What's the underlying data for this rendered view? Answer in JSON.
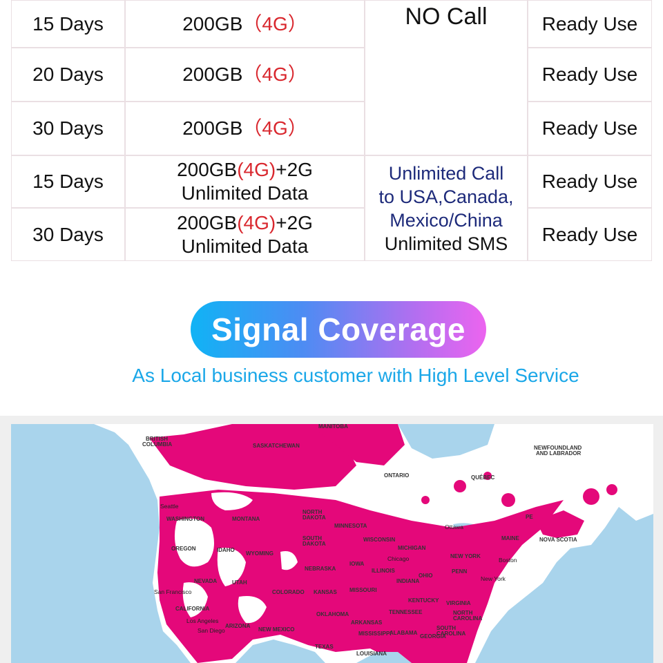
{
  "plans": {
    "rows": [
      {
        "duration": "15 Days",
        "data": "200GB",
        "network": "（4G）",
        "status": "Ready Use"
      },
      {
        "duration": "20 Days",
        "data": "200GB",
        "network": "（4G）",
        "status": "Ready Use"
      },
      {
        "duration": "30 Days",
        "data": "200GB",
        "network": "（4G）",
        "status": "Ready Use"
      },
      {
        "duration": "15 Days",
        "data_line1_a": "200GB",
        "data_line1_net": "(4G)",
        "data_line1_b": "+2G",
        "data_line2": "Unlimited Data",
        "status": "Ready Use"
      },
      {
        "duration": "30 Days",
        "data_line1_a": "200GB",
        "data_line1_net": "(4G)",
        "data_line1_b": "+2G",
        "data_line2": "Unlimited Data",
        "status": "Ready Use"
      }
    ],
    "call_group_1": "NO Call",
    "call_group_2": {
      "line1": "Unlimited Call",
      "line2": "to USA,Canada,",
      "line3": "Mexico/China",
      "line4": "Unlimited SMS"
    }
  },
  "heading": {
    "title": "Signal Coverage",
    "subtitle": "As Local business customer with High Level Service"
  },
  "map": {
    "region_labels": [
      "MANITOBA",
      "BRITISH COLUMBIA",
      "SASKATCHEWAN",
      "ONTARIO",
      "QUÉBEC",
      "NEWFOUNDLAND AND LABRADOR",
      "NORTH DAKOTA",
      "SOUTH DAKOTA",
      "MINNESOTA",
      "WISCONSIN",
      "MICHIGAN",
      "WASHINGTON",
      "MONTANA",
      "OREGON",
      "IDAHO",
      "WYOMING",
      "NEBRASKA",
      "IOWA",
      "ILLINOIS",
      "INDIANA",
      "OHIO",
      "NEVADA",
      "UTAH",
      "COLORADO",
      "KANSAS",
      "MISSOURI",
      "KENTUCKY",
      "CALIFORNIA",
      "ARIZONA",
      "NEW MEXICO",
      "OKLAHOMA",
      "ARKANSAS",
      "TEXAS",
      "LOUISIANA",
      "MISSISSIPPI",
      "ALABAMA",
      "GEORGIA",
      "TENNESSEE",
      "NEW YORK",
      "PENN",
      "VIRGINIA",
      "NORTH CAROLINA",
      "SOUTH CAROLINA",
      "MAINE",
      "NOVA SCOTIA",
      "PE"
    ],
    "city_labels": [
      "Seattle",
      "Ottawa",
      "Boston",
      "New York",
      "Chicago",
      "San Francisco",
      "Los Angeles",
      "San Diego"
    ],
    "colors": {
      "water": "#a9d4ec",
      "land": "#ffffff",
      "coverage": "#e4087a"
    }
  }
}
